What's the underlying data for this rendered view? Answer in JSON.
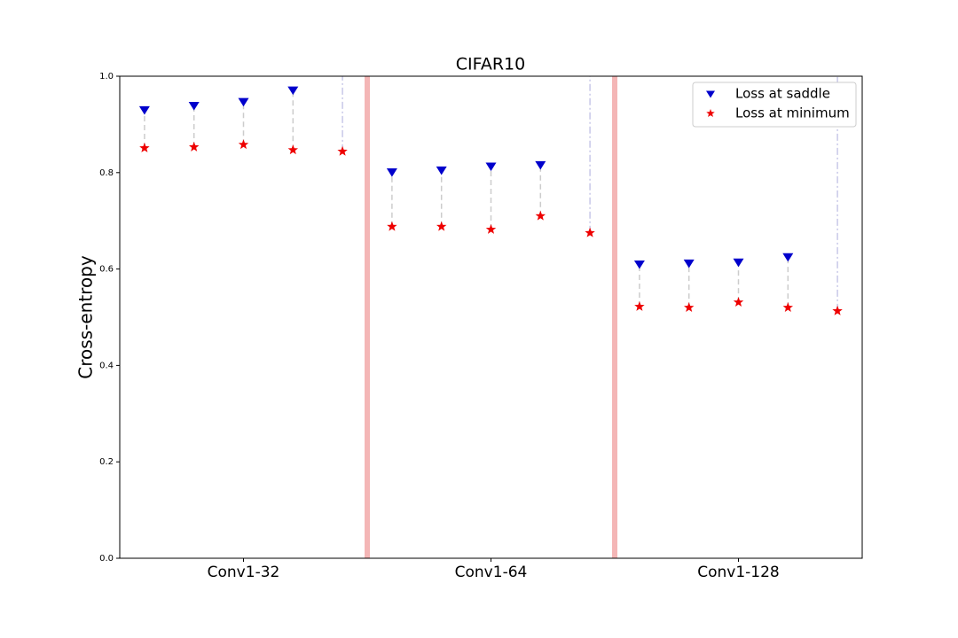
{
  "chart_data": {
    "type": "scatter",
    "title": "CIFAR10",
    "ylabel": "Cross-entropy",
    "x": [
      0,
      1,
      2,
      3,
      4,
      5,
      6,
      7,
      8,
      9,
      10,
      11,
      12,
      13,
      14
    ],
    "series": [
      {
        "name": "Loss at saddle",
        "color": "#0000cc",
        "marker": "triangle-down",
        "values": [
          0.93,
          0.939,
          0.947,
          0.971,
          null,
          0.801,
          0.805,
          0.813,
          0.816,
          null,
          0.61,
          0.612,
          0.614,
          0.625,
          null
        ]
      },
      {
        "name": "Loss at minimum",
        "color": "#ee0000",
        "marker": "star",
        "values": [
          0.851,
          0.853,
          0.858,
          0.847,
          0.844,
          0.688,
          0.688,
          0.682,
          0.71,
          0.675,
          0.522,
          0.52,
          0.531,
          0.52,
          0.513
        ]
      }
    ],
    "xlim": [
      -0.5,
      14.5
    ],
    "xticks": [
      {
        "value": 2,
        "label": "Conv1-32"
      },
      {
        "value": 7,
        "label": "Conv1-64"
      },
      {
        "value": 12,
        "label": "Conv1-128"
      }
    ],
    "ylim": [
      0,
      1
    ],
    "yticks": [
      {
        "value": 0,
        "label": "0.0"
      },
      0.2,
      0.4,
      0.6,
      0.8,
      {
        "value": 1,
        "label": "1.0"
      }
    ],
    "vlines": [
      4.5,
      9.5
    ],
    "vline_color": "#f4b6b6",
    "legend": "upper right",
    "grid": false
  }
}
